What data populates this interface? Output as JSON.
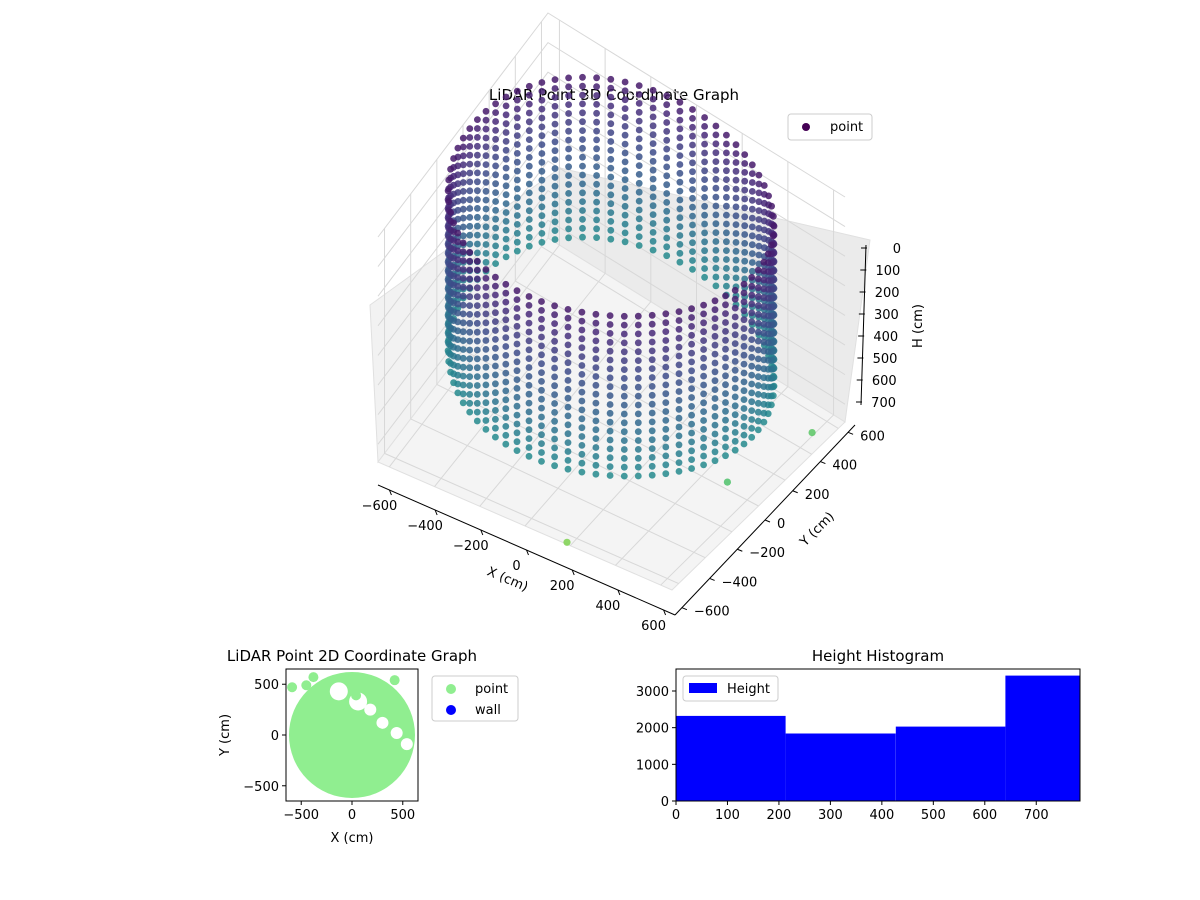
{
  "chart_data": [
    {
      "type": "scatter",
      "projection": "3d",
      "title": "LiDAR Point 3D Coordinate Graph",
      "xlabel": "X (cm)",
      "ylabel": "Y (cm)",
      "zlabel": "H (cm)",
      "xlim": [
        -650,
        650
      ],
      "ylim": [
        -650,
        650
      ],
      "zlim": [
        0,
        760
      ],
      "z_axis_inverted": true,
      "xticks": [
        -600,
        -400,
        -200,
        0,
        200,
        400,
        600
      ],
      "yticks": [
        -600,
        -400,
        -200,
        0,
        200,
        400,
        600
      ],
      "zticks": [
        0,
        100,
        200,
        300,
        400,
        500,
        600,
        700
      ],
      "colormap": "viridis",
      "legend": {
        "position": "top-right",
        "entries": [
          {
            "label": "point",
            "color": "#440154"
          }
        ]
      },
      "series": [
        {
          "name": "point",
          "shape": "cylindrical wall of points",
          "radius": 620,
          "height_range": [
            0,
            540
          ],
          "points": [
            {
              "x": 180,
              "y": -640,
              "h": 760
            },
            {
              "x": 640,
              "y": 420,
              "h": 700
            },
            {
              "x": 560,
              "y": -80,
              "h": 680
            }
          ]
        }
      ]
    },
    {
      "type": "scatter",
      "title": "LiDAR Point 2D Coordinate Graph",
      "xlabel": "X (cm)",
      "ylabel": "Y (cm)",
      "xlim": [
        -650,
        650
      ],
      "ylim": [
        -650,
        650
      ],
      "xticks": [
        -500,
        0,
        500
      ],
      "yticks": [
        -500,
        0,
        500
      ],
      "legend": {
        "position": "right-outside",
        "entries": [
          {
            "label": "point",
            "color": "#90ee90"
          },
          {
            "label": "wall",
            "color": "#0000ff"
          }
        ]
      },
      "series": [
        {
          "name": "point",
          "color": "#90ee90",
          "shape": "filled disc",
          "center": [
            0,
            0
          ],
          "radius": 620,
          "points": [
            {
              "x": -590,
              "y": 470
            },
            {
              "x": -450,
              "y": 490
            },
            {
              "x": -380,
              "y": 570
            },
            {
              "x": 40,
              "y": 390
            },
            {
              "x": 420,
              "y": 540
            }
          ]
        },
        {
          "name": "wall",
          "color": "#0000ff",
          "points": []
        }
      ]
    },
    {
      "type": "bar",
      "subtype": "histogram",
      "title": "Height Histogram",
      "xlim": [
        0,
        785
      ],
      "ylim": [
        0,
        3600
      ],
      "xticks": [
        0,
        100,
        200,
        300,
        400,
        500,
        600,
        700
      ],
      "yticks": [
        0,
        1000,
        2000,
        3000
      ],
      "color": "#0000ff",
      "legend": {
        "position": "top-left",
        "entries": [
          {
            "label": "Height",
            "color": "#0000ff"
          }
        ]
      },
      "bins": [
        {
          "start": 0,
          "end": 213,
          "count": 2320
        },
        {
          "start": 213,
          "end": 427,
          "count": 1840
        },
        {
          "start": 427,
          "end": 640,
          "count": 2030
        },
        {
          "start": 640,
          "end": 785,
          "count": 3420
        }
      ]
    }
  ]
}
